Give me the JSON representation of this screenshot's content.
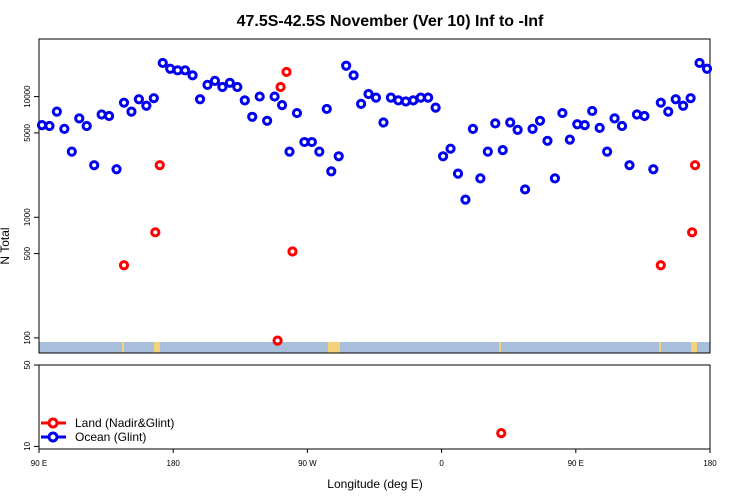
{
  "chart_data": {
    "type": "scatter",
    "title": "47.5S-42.5S November (Ver 10)   Inf to -Inf",
    "xlabel": "Longitude (deg E)",
    "ylabel": "N Total",
    "x_ticks": [
      {
        "value": 90,
        "label": "90 E"
      },
      {
        "value": 180,
        "label": "180"
      },
      {
        "value": 270,
        "label": "90 W"
      },
      {
        "value": 360,
        "label": "0"
      },
      {
        "value": 450,
        "label": "90 E"
      },
      {
        "value": 540,
        "label": "180"
      }
    ],
    "xlim": [
      90,
      540
    ],
    "y_scale": "log",
    "upper_panel": {
      "ylim": [
        75,
        30000
      ],
      "y_ticks": [
        {
          "value": 100,
          "label": "100"
        },
        {
          "value": 500,
          "label": "500"
        },
        {
          "value": 1000,
          "label": "1000"
        },
        {
          "value": 5000,
          "label": "5000"
        },
        {
          "value": 10000,
          "label": "10000"
        }
      ]
    },
    "lower_panel": {
      "ylim": [
        9.5,
        50
      ],
      "y_ticks": [
        {
          "value": 10,
          "label": "10"
        },
        {
          "value": 50,
          "label": "50"
        }
      ]
    },
    "map_strip_colors": {
      "ocean": "#a8bfdc",
      "land": "#f5d27a"
    },
    "series": [
      {
        "name": "Land (Nadir&Glint)",
        "color": "#ff0000",
        "points": [
          [
            147,
            400
          ],
          [
            168,
            750
          ],
          [
            171,
            2700
          ],
          [
            250,
            95
          ],
          [
            252,
            12000
          ],
          [
            256,
            16000
          ],
          [
            260,
            520
          ],
          [
            400,
            13
          ],
          [
            507,
            400
          ],
          [
            528,
            750
          ],
          [
            530,
            2700
          ]
        ]
      },
      {
        "name": "Ocean (Glint)",
        "color": "#0000ee",
        "points": [
          [
            92,
            5800
          ],
          [
            97,
            5700
          ],
          [
            102,
            7500
          ],
          [
            107,
            5400
          ],
          [
            112,
            3500
          ],
          [
            117,
            6600
          ],
          [
            122,
            5700
          ],
          [
            127,
            2700
          ],
          [
            132,
            7100
          ],
          [
            137,
            6900
          ],
          [
            142,
            2500
          ],
          [
            147,
            8900
          ],
          [
            152,
            7500
          ],
          [
            157,
            9500
          ],
          [
            162,
            8400
          ],
          [
            167,
            9700
          ],
          [
            173,
            19000
          ],
          [
            178,
            17000
          ],
          [
            183,
            16500
          ],
          [
            188,
            16500
          ],
          [
            193,
            15000
          ],
          [
            198,
            9500
          ],
          [
            203,
            12500
          ],
          [
            208,
            13500
          ],
          [
            213,
            12000
          ],
          [
            218,
            13000
          ],
          [
            223,
            12000
          ],
          [
            228,
            9300
          ],
          [
            233,
            6800
          ],
          [
            238,
            10000
          ],
          [
            243,
            6300
          ],
          [
            248,
            10000
          ],
          [
            253,
            8500
          ],
          [
            258,
            3500
          ],
          [
            263,
            7300
          ],
          [
            268,
            4200
          ],
          [
            273,
            4200
          ],
          [
            278,
            3500
          ],
          [
            283,
            7900
          ],
          [
            286,
            2400
          ],
          [
            291,
            3200
          ],
          [
            296,
            18000
          ],
          [
            301,
            15000
          ],
          [
            306,
            8700
          ],
          [
            311,
            10500
          ],
          [
            316,
            9800
          ],
          [
            321,
            6100
          ],
          [
            326,
            9800
          ],
          [
            331,
            9300
          ],
          [
            336,
            9100
          ],
          [
            341,
            9300
          ],
          [
            346,
            9800
          ],
          [
            351,
            9800
          ],
          [
            356,
            8100
          ],
          [
            361,
            3200
          ],
          [
            366,
            3700
          ],
          [
            371,
            2300
          ],
          [
            376,
            1400
          ],
          [
            381,
            5400
          ],
          [
            386,
            2100
          ],
          [
            391,
            3500
          ],
          [
            396,
            6000
          ],
          [
            401,
            3600
          ],
          [
            406,
            6100
          ],
          [
            411,
            5300
          ],
          [
            416,
            1700
          ],
          [
            421,
            5400
          ],
          [
            426,
            6300
          ],
          [
            431,
            4300
          ],
          [
            436,
            2100
          ],
          [
            441,
            7300
          ],
          [
            446,
            4400
          ],
          [
            451,
            5900
          ],
          [
            456,
            5800
          ],
          [
            461,
            7600
          ],
          [
            466,
            5500
          ],
          [
            471,
            3500
          ],
          [
            476,
            6600
          ],
          [
            481,
            5700
          ],
          [
            486,
            2700
          ],
          [
            491,
            7100
          ],
          [
            496,
            6900
          ],
          [
            502,
            2500
          ],
          [
            507,
            8900
          ],
          [
            512,
            7500
          ],
          [
            517,
            9500
          ],
          [
            522,
            8400
          ],
          [
            527,
            9700
          ],
          [
            533,
            19000
          ],
          [
            538,
            17000
          ]
        ]
      }
    ],
    "legend": {
      "position": "bottom-left"
    }
  }
}
